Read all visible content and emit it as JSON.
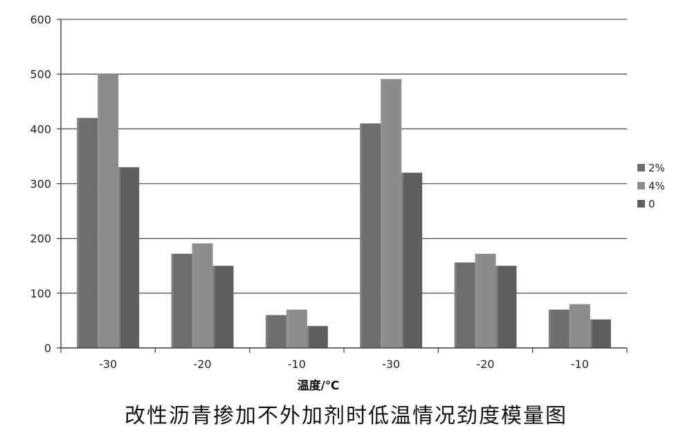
{
  "chart_data": {
    "type": "bar",
    "categories": [
      "-30",
      "-20",
      "-10",
      "-30",
      "-20",
      "-10"
    ],
    "series": [
      {
        "name": "2%",
        "values": [
          420,
          172,
          60,
          410,
          156,
          70
        ],
        "color": "#6e6e6e"
      },
      {
        "name": "4%",
        "values": [
          500,
          191,
          70,
          491,
          172,
          80
        ],
        "color": "#8c8c8c"
      },
      {
        "name": "0",
        "values": [
          330,
          150,
          40,
          320,
          150,
          52
        ],
        "color": "#5e5e5e"
      }
    ],
    "yticks": [
      0,
      100,
      200,
      300,
      400,
      500,
      600
    ],
    "ylim": [
      0,
      600
    ],
    "xlabel": "温度/℃",
    "ylabel": "",
    "grid": true,
    "legend_position": "right"
  },
  "caption": "改性沥青掺加不外加剂时低温情况劲度模量图"
}
